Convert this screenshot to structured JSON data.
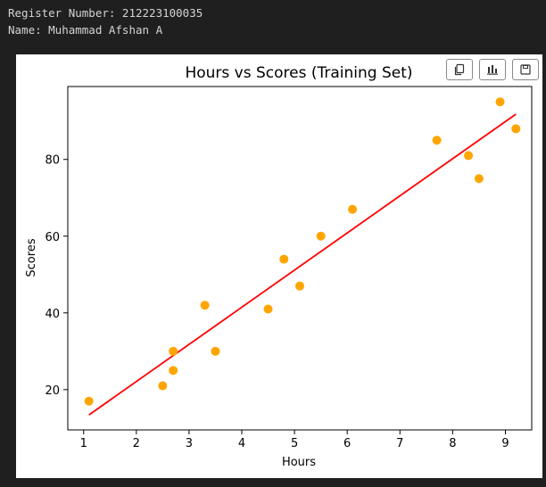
{
  "output": {
    "line1": "Register Number: 212223100035",
    "line2": "Name: Muhammad Afshan A"
  },
  "toolbar": {
    "icons": [
      "copy-icon",
      "chart-icon",
      "save-icon"
    ]
  },
  "chart_data": {
    "type": "scatter",
    "title": "Hours vs Scores (Training Set)",
    "xlabel": "Hours",
    "ylabel": "Scores",
    "xlim": [
      0.7,
      9.5
    ],
    "ylim": [
      9.5,
      99
    ],
    "xticks": [
      1,
      2,
      3,
      4,
      5,
      6,
      7,
      8,
      9
    ],
    "yticks": [
      20,
      40,
      60,
      80
    ],
    "grid": false,
    "points": {
      "x": [
        1.1,
        2.5,
        2.7,
        2.7,
        3.3,
        3.5,
        4.5,
        4.8,
        5.1,
        5.5,
        6.1,
        7.7,
        8.3,
        8.5,
        8.9,
        9.2
      ],
      "y": [
        17,
        21,
        25,
        30,
        42,
        30,
        41,
        54,
        47,
        60,
        67,
        85,
        81,
        75,
        95,
        88
      ],
      "color": "#ffa500"
    },
    "regression_line": {
      "x": [
        1.1,
        9.2
      ],
      "y": [
        13.4,
        91.8
      ],
      "color": "#ff0000"
    }
  }
}
